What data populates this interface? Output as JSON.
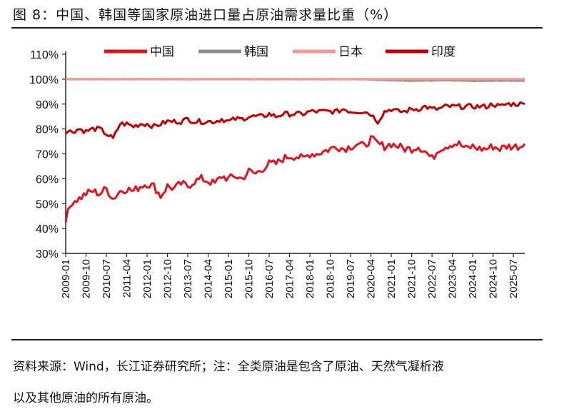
{
  "figure": {
    "title": "图 8：中国、韩国等国家原油进口量占原油需求量比重（%）",
    "source_line1": "资料来源：Wind，长江证券研究所；注：全类原油是包含了原油、天然气凝析液",
    "source_line2": "以及其他原油的所有原油。"
  },
  "chart_data": {
    "type": "line",
    "title": "",
    "xlabel": "",
    "ylabel": "",
    "ylim": [
      30,
      110
    ],
    "yticks": [
      "30%",
      "40%",
      "50%",
      "60%",
      "70%",
      "80%",
      "90%",
      "100%",
      "110%"
    ],
    "x_range": [
      "2009-01",
      "2025-12"
    ],
    "xticks": [
      "2009-01",
      "2009-10",
      "2010-07",
      "2011-04",
      "2012-01",
      "2012-10",
      "2013-07",
      "2014-04",
      "2015-01",
      "2015-10",
      "2016-07",
      "2017-04",
      "2018-01",
      "2018-10",
      "2019-07",
      "2020-04",
      "2021-01",
      "2021-10",
      "2022-07",
      "2023-04",
      "2024-01",
      "2024-10",
      "2025-07"
    ],
    "legend_position": "top",
    "grid": false,
    "series": [
      {
        "name": "中国",
        "color": "#e0141e",
        "values": [
          [
            "2009-01",
            44
          ],
          [
            "2009-04",
            51
          ],
          [
            "2009-07",
            52
          ],
          [
            "2009-10",
            54
          ],
          [
            "2010-01",
            55
          ],
          [
            "2010-04",
            54
          ],
          [
            "2010-07",
            56
          ],
          [
            "2010-10",
            52
          ],
          [
            "2011-01",
            55
          ],
          [
            "2011-04",
            56
          ],
          [
            "2011-07",
            55
          ],
          [
            "2011-10",
            57
          ],
          [
            "2012-01",
            58
          ],
          [
            "2012-04",
            57
          ],
          [
            "2012-07",
            53
          ],
          [
            "2012-10",
            57
          ],
          [
            "2013-01",
            56
          ],
          [
            "2013-04",
            58
          ],
          [
            "2013-07",
            57
          ],
          [
            "2013-10",
            59
          ],
          [
            "2014-01",
            60
          ],
          [
            "2014-04",
            59
          ],
          [
            "2014-07",
            58
          ],
          [
            "2014-10",
            61
          ],
          [
            "2015-01",
            60
          ],
          [
            "2015-04",
            61
          ],
          [
            "2015-07",
            60
          ],
          [
            "2015-10",
            63
          ],
          [
            "2016-01",
            62
          ],
          [
            "2016-04",
            64
          ],
          [
            "2016-07",
            66
          ],
          [
            "2016-10",
            66
          ],
          [
            "2017-01",
            68
          ],
          [
            "2017-04",
            69
          ],
          [
            "2017-07",
            69
          ],
          [
            "2017-10",
            68
          ],
          [
            "2018-01",
            70
          ],
          [
            "2018-04",
            70
          ],
          [
            "2018-07",
            71
          ],
          [
            "2018-10",
            72
          ],
          [
            "2019-01",
            73
          ],
          [
            "2019-04",
            72
          ],
          [
            "2019-07",
            73
          ],
          [
            "2019-10",
            74
          ],
          [
            "2020-01",
            73
          ],
          [
            "2020-04",
            76
          ],
          [
            "2020-07",
            74
          ],
          [
            "2020-10",
            73
          ],
          [
            "2021-01",
            74
          ],
          [
            "2021-04",
            73
          ],
          [
            "2021-07",
            72
          ],
          [
            "2021-10",
            72
          ],
          [
            "2022-01",
            73
          ],
          [
            "2022-04",
            71
          ],
          [
            "2022-07",
            68
          ],
          [
            "2022-10",
            72
          ],
          [
            "2023-01",
            73
          ],
          [
            "2023-04",
            74
          ],
          [
            "2023-07",
            74
          ],
          [
            "2023-10",
            72
          ],
          [
            "2024-01",
            73
          ],
          [
            "2024-04",
            72
          ],
          [
            "2024-07",
            72
          ],
          [
            "2024-10",
            73
          ],
          [
            "2025-01",
            72
          ],
          [
            "2025-04",
            73
          ],
          [
            "2025-07",
            73
          ],
          [
            "2025-10",
            73
          ],
          [
            "2025-12",
            74
          ]
        ]
      },
      {
        "name": "韩国",
        "color": "#8c8c8c",
        "values": [
          [
            "2009-01",
            100
          ],
          [
            "2012-01",
            100
          ],
          [
            "2015-01",
            100
          ],
          [
            "2018-01",
            100
          ],
          [
            "2020-01",
            100
          ],
          [
            "2021-01",
            99.5
          ],
          [
            "2022-01",
            99.4
          ],
          [
            "2023-01",
            99.5
          ],
          [
            "2024-01",
            99.3
          ],
          [
            "2025-01",
            99.4
          ],
          [
            "2025-12",
            99.4
          ]
        ]
      },
      {
        "name": "日本",
        "color": "#f59a9a",
        "values": [
          [
            "2009-01",
            100
          ],
          [
            "2013-01",
            100
          ],
          [
            "2017-01",
            100
          ],
          [
            "2021-01",
            100
          ],
          [
            "2025-12",
            100
          ]
        ]
      },
      {
        "name": "印度",
        "color": "#c00000",
        "values": [
          [
            "2009-01",
            79
          ],
          [
            "2009-04",
            79
          ],
          [
            "2009-07",
            80
          ],
          [
            "2009-10",
            79
          ],
          [
            "2010-01",
            80
          ],
          [
            "2010-04",
            80
          ],
          [
            "2010-07",
            78
          ],
          [
            "2010-10",
            76
          ],
          [
            "2011-01",
            82
          ],
          [
            "2011-04",
            82
          ],
          [
            "2011-07",
            81
          ],
          [
            "2011-10",
            82
          ],
          [
            "2012-01",
            82
          ],
          [
            "2012-04",
            81
          ],
          [
            "2012-07",
            82
          ],
          [
            "2012-10",
            83
          ],
          [
            "2013-01",
            83
          ],
          [
            "2013-04",
            83
          ],
          [
            "2013-07",
            84
          ],
          [
            "2013-10",
            83
          ],
          [
            "2014-01",
            83
          ],
          [
            "2014-04",
            83
          ],
          [
            "2014-07",
            83
          ],
          [
            "2014-10",
            84
          ],
          [
            "2015-01",
            83
          ],
          [
            "2015-04",
            84
          ],
          [
            "2015-07",
            84
          ],
          [
            "2015-10",
            85
          ],
          [
            "2016-01",
            85
          ],
          [
            "2016-04",
            85
          ],
          [
            "2016-07",
            86
          ],
          [
            "2016-10",
            85
          ],
          [
            "2017-01",
            86
          ],
          [
            "2017-04",
            86
          ],
          [
            "2017-07",
            86
          ],
          [
            "2017-10",
            86
          ],
          [
            "2018-01",
            87
          ],
          [
            "2018-04",
            87
          ],
          [
            "2018-07",
            87
          ],
          [
            "2018-10",
            87
          ],
          [
            "2019-01",
            87
          ],
          [
            "2019-04",
            88
          ],
          [
            "2019-07",
            87
          ],
          [
            "2019-10",
            87
          ],
          [
            "2020-01",
            87
          ],
          [
            "2020-04",
            86
          ],
          [
            "2020-07",
            83
          ],
          [
            "2020-10",
            87
          ],
          [
            "2021-01",
            88
          ],
          [
            "2021-04",
            87
          ],
          [
            "2021-07",
            87
          ],
          [
            "2021-10",
            88
          ],
          [
            "2022-01",
            88
          ],
          [
            "2022-04",
            89
          ],
          [
            "2022-07",
            88
          ],
          [
            "2022-10",
            88
          ],
          [
            "2023-01",
            89
          ],
          [
            "2023-04",
            89
          ],
          [
            "2023-07",
            89
          ],
          [
            "2023-10",
            89
          ],
          [
            "2024-01",
            89
          ],
          [
            "2024-04",
            89
          ],
          [
            "2024-07",
            89
          ],
          [
            "2024-10",
            90
          ],
          [
            "2025-01",
            89
          ],
          [
            "2025-04",
            90
          ],
          [
            "2025-07",
            90
          ],
          [
            "2025-10",
            90
          ],
          [
            "2025-12",
            90
          ]
        ]
      }
    ]
  }
}
